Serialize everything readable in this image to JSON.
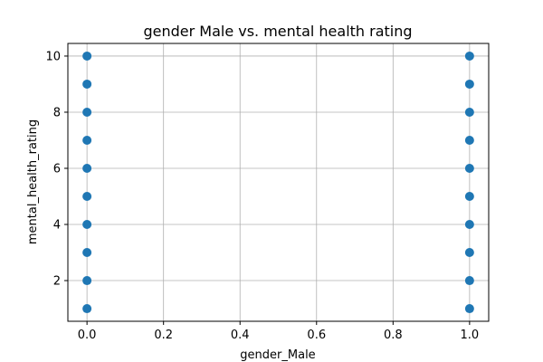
{
  "chart_data": {
    "type": "scatter",
    "title": "gender Male vs. mental health rating",
    "xlabel": "gender_Male",
    "ylabel": "mental_health_rating",
    "xlim": [
      -0.05,
      1.05
    ],
    "ylim": [
      0.55,
      10.45
    ],
    "xticks": [
      "0.0",
      "0.2",
      "0.4",
      "0.6",
      "0.8",
      "1.0"
    ],
    "xtick_values": [
      0,
      0.2,
      0.4,
      0.6,
      0.8,
      1.0
    ],
    "yticks": [
      "2",
      "4",
      "6",
      "8",
      "10"
    ],
    "ytick_values": [
      2,
      4,
      6,
      8,
      10
    ],
    "grid": true,
    "series_color": "#1f77b4",
    "points": [
      {
        "x": 0,
        "y": 1
      },
      {
        "x": 0,
        "y": 2
      },
      {
        "x": 0,
        "y": 3
      },
      {
        "x": 0,
        "y": 4
      },
      {
        "x": 0,
        "y": 5
      },
      {
        "x": 0,
        "y": 6
      },
      {
        "x": 0,
        "y": 7
      },
      {
        "x": 0,
        "y": 8
      },
      {
        "x": 0,
        "y": 9
      },
      {
        "x": 0,
        "y": 10
      },
      {
        "x": 1,
        "y": 1
      },
      {
        "x": 1,
        "y": 2
      },
      {
        "x": 1,
        "y": 3
      },
      {
        "x": 1,
        "y": 4
      },
      {
        "x": 1,
        "y": 5
      },
      {
        "x": 1,
        "y": 6
      },
      {
        "x": 1,
        "y": 7
      },
      {
        "x": 1,
        "y": 8
      },
      {
        "x": 1,
        "y": 9
      },
      {
        "x": 1,
        "y": 10
      }
    ]
  }
}
